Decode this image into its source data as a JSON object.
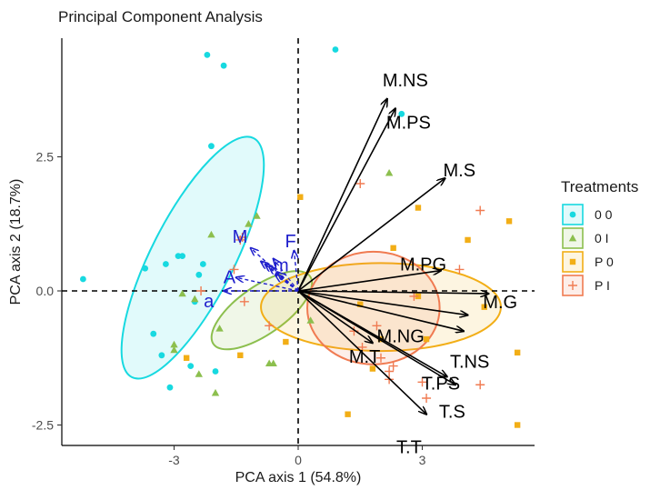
{
  "chart_data": {
    "type": "scatter",
    "title": "Principal Component Analysis",
    "xlabel": "PCA axis 1 (54.8%)",
    "ylabel": "PCA axis 2 (18.7%)",
    "xlim": [
      -5.6,
      5.7
    ],
    "ylim": [
      -2.9,
      4.75
    ],
    "xticks": [
      -3,
      0,
      3
    ],
    "xtick_labels": [
      "-3",
      "0",
      "3"
    ],
    "yticks": [
      -2.5,
      0.0,
      2.5
    ],
    "ytick_labels": [
      "-2.5",
      "0.0",
      "2.5"
    ],
    "reference_lines": {
      "x": 0,
      "y": 0,
      "style": "dashed"
    },
    "legend": {
      "title": "Treatments",
      "position": "right",
      "entries": [
        {
          "label": "0 0",
          "color": "#17d9e0",
          "marker": "circle"
        },
        {
          "label": "0 I",
          "color": "#8cbf4e",
          "marker": "triangle"
        },
        {
          "label": "P 0",
          "color": "#f2ae16",
          "marker": "square"
        },
        {
          "label": "P I",
          "color": "#f07b52",
          "marker": "plus"
        }
      ]
    },
    "series": [
      {
        "name": "0 0",
        "color": "#17d9e0",
        "marker": "circle",
        "points": [
          [
            -5.2,
            0.22
          ],
          [
            -3.7,
            0.42
          ],
          [
            -3.2,
            0.5
          ],
          [
            -2.9,
            0.65
          ],
          [
            -2.8,
            0.65
          ],
          [
            -2.4,
            0.3
          ],
          [
            -2.3,
            0.5
          ],
          [
            -2.5,
            -0.2
          ],
          [
            -3.5,
            -0.8
          ],
          [
            -3.3,
            -1.2
          ],
          [
            -2.6,
            -1.4
          ],
          [
            -3.1,
            -1.8
          ],
          [
            -2.0,
            -1.5
          ],
          [
            -2.1,
            2.7
          ],
          [
            -1.8,
            4.2
          ],
          [
            -2.2,
            4.4
          ],
          [
            0.9,
            4.5
          ],
          [
            2.5,
            3.3
          ]
        ],
        "ellipse": {
          "center": [
            -2.55,
            0.62
          ],
          "radii": [
            1.0,
            2.5
          ],
          "angle_deg": 27
        }
      },
      {
        "name": "0 I",
        "color": "#8cbf4e",
        "marker": "triangle",
        "points": [
          [
            -1.0,
            1.4
          ],
          [
            -1.2,
            1.25
          ],
          [
            -2.1,
            1.05
          ],
          [
            -2.8,
            -0.05
          ],
          [
            -2.5,
            -0.15
          ],
          [
            -1.9,
            -0.7
          ],
          [
            -3.0,
            -1.0
          ],
          [
            -3.0,
            -1.1
          ],
          [
            -2.4,
            -1.55
          ],
          [
            -2.0,
            -1.9
          ],
          [
            -0.7,
            -1.35
          ],
          [
            -0.6,
            -1.35
          ],
          [
            0.3,
            -0.55
          ],
          [
            2.2,
            2.2
          ]
        ],
        "ellipse": {
          "center": [
            -0.88,
            -0.36
          ],
          "radii": [
            0.58,
            1.1
          ],
          "angle_deg": 55
        }
      },
      {
        "name": "P 0",
        "color": "#f2ae16",
        "marker": "square",
        "points": [
          [
            0.05,
            1.75
          ],
          [
            2.3,
            0.8
          ],
          [
            2.9,
            1.55
          ],
          [
            4.1,
            0.95
          ],
          [
            5.1,
            1.3
          ],
          [
            4.5,
            -0.3
          ],
          [
            2.9,
            -0.1
          ],
          [
            1.5,
            -0.25
          ],
          [
            2.0,
            -0.9
          ],
          [
            3.1,
            -0.9
          ],
          [
            5.3,
            -1.15
          ],
          [
            1.8,
            -1.45
          ],
          [
            -0.3,
            -0.95
          ],
          [
            -1.4,
            -1.2
          ],
          [
            -2.7,
            -1.25
          ],
          [
            1.2,
            -2.3
          ],
          [
            5.3,
            -2.5
          ]
        ],
        "ellipse": {
          "center": [
            2.0,
            -0.3
          ],
          "radii": [
            2.9,
            0.82
          ],
          "angle_deg": 0
        }
      },
      {
        "name": "P I",
        "color": "#f07b52",
        "marker": "plus",
        "points": [
          [
            1.5,
            2.0
          ],
          [
            4.4,
            1.5
          ],
          [
            3.9,
            0.4
          ],
          [
            2.8,
            -0.1
          ],
          [
            1.9,
            -0.65
          ],
          [
            1.35,
            -0.75
          ],
          [
            1.55,
            -1.05
          ],
          [
            2.0,
            -1.25
          ],
          [
            2.2,
            -1.5
          ],
          [
            2.3,
            -1.4
          ],
          [
            2.2,
            -1.65
          ],
          [
            3.0,
            -1.7
          ],
          [
            3.1,
            -2.0
          ],
          [
            4.4,
            -1.75
          ],
          [
            -0.7,
            -0.65
          ],
          [
            -1.3,
            -0.2
          ],
          [
            -1.4,
            0.95
          ],
          [
            -1.35,
            1.0
          ],
          [
            -1.55,
            0.4
          ],
          [
            -2.35,
            0.0
          ]
        ],
        "ellipse": {
          "center": [
            1.82,
            -0.32
          ],
          "radii": [
            1.6,
            1.05
          ],
          "angle_deg": 0
        }
      }
    ],
    "loadings": [
      {
        "label": "M.NS",
        "x": 2.15,
        "y": 3.58,
        "group": "major"
      },
      {
        "label": "M.PS",
        "x": 2.35,
        "y": 3.4,
        "group": "major"
      },
      {
        "label": "M.S",
        "x": 3.55,
        "y": 2.1,
        "group": "major"
      },
      {
        "label": "M.PG",
        "x": 3.45,
        "y": 0.38,
        "group": "major"
      },
      {
        "label": "M.G",
        "x": 4.6,
        "y": -0.05,
        "group": "major"
      },
      {
        "label": "M.NG",
        "x": 4.1,
        "y": -0.45,
        "group": "major"
      },
      {
        "label": "T.NS",
        "x": 4.0,
        "y": -0.75,
        "group": "major"
      },
      {
        "label": "M.T",
        "x": 1.8,
        "y": -0.97,
        "group": "major"
      },
      {
        "label": "T.PS",
        "x": 3.6,
        "y": -1.6,
        "group": "major"
      },
      {
        "label": "T.S",
        "x": 3.8,
        "y": -1.75,
        "group": "major"
      },
      {
        "label": "T.T",
        "x": 3.1,
        "y": -2.3,
        "group": "major"
      },
      {
        "label": "F",
        "x": -0.1,
        "y": 0.75,
        "group": "minor"
      },
      {
        "label": "M",
        "x": -1.15,
        "y": 0.8,
        "group": "minor"
      },
      {
        "label": "m",
        "x": -0.55,
        "y": 0.3,
        "group": "minor"
      },
      {
        "label": "A",
        "x": -1.5,
        "y": 0.25,
        "group": "minor"
      },
      {
        "label": "a",
        "x": -1.8,
        "y": 0.0,
        "group": "minor"
      }
    ],
    "minor_extra_arrows": [
      [
        -0.9,
        0.55
      ],
      [
        -0.7,
        0.45
      ],
      [
        -0.8,
        0.5
      ],
      [
        -0.6,
        0.6
      ],
      [
        -0.5,
        0.35
      ]
    ],
    "arrow_colors": {
      "major": "#000000",
      "minor": "#1f1fcc"
    }
  }
}
